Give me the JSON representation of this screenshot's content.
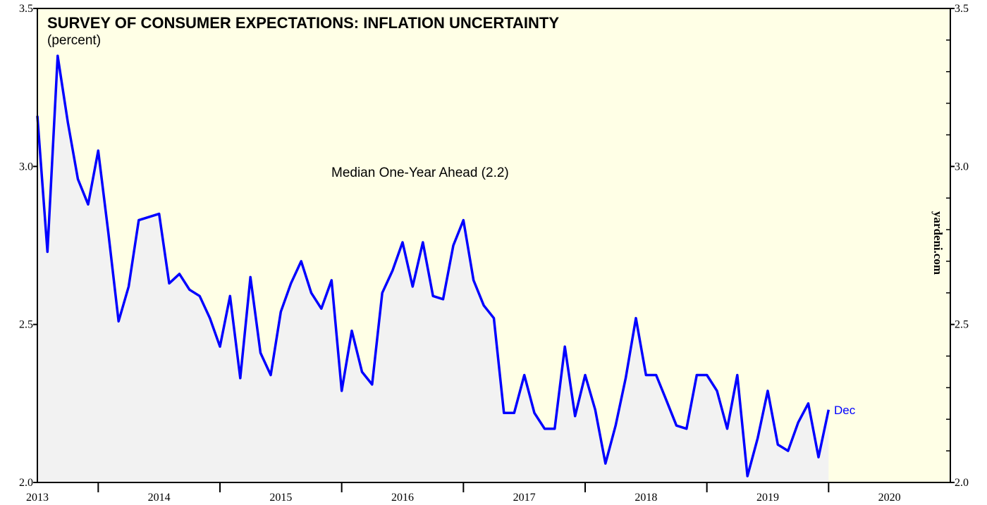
{
  "chart_data": {
    "type": "line",
    "title": "SURVEY OF CONSUMER EXPECTATIONS: INFLATION UNCERTAINTY",
    "subtitle": "(percent)",
    "annotations": [
      "Median One-Year Ahead (2.2)",
      "Dec",
      "yardeni.com"
    ],
    "x": [
      2013.5,
      2013.583,
      2013.667,
      2013.75,
      2013.833,
      2013.917,
      2014,
      2014.083,
      2014.167,
      2014.25,
      2014.333,
      2014.417,
      2014.5,
      2014.583,
      2014.667,
      2014.75,
      2014.833,
      2014.917,
      2015,
      2015.083,
      2015.167,
      2015.25,
      2015.333,
      2015.417,
      2015.5,
      2015.583,
      2015.667,
      2015.75,
      2015.833,
      2015.917,
      2016,
      2016.083,
      2016.167,
      2016.25,
      2016.333,
      2016.417,
      2016.5,
      2016.583,
      2016.667,
      2016.75,
      2016.833,
      2016.917,
      2017,
      2017.083,
      2017.167,
      2017.25,
      2017.333,
      2017.417,
      2017.5,
      2017.583,
      2017.667,
      2017.75,
      2017.833,
      2017.917,
      2018,
      2018.083,
      2018.167,
      2018.25,
      2018.333,
      2018.417,
      2018.5,
      2018.583,
      2018.667,
      2018.75,
      2018.833,
      2018.917,
      2019,
      2019.083,
      2019.167,
      2019.25,
      2019.333,
      2019.417,
      2019.5,
      2019.583,
      2019.667,
      2019.75,
      2019.833,
      2019.917,
      2020
    ],
    "series": [
      {
        "name": "Median One-Year Ahead",
        "color": "#0000ff",
        "area_color": "#f2f2f2",
        "values": [
          3.16,
          2.73,
          3.35,
          3.14,
          2.96,
          2.88,
          3.05,
          2.79,
          2.51,
          2.62,
          2.83,
          2.84,
          2.85,
          2.63,
          2.66,
          2.61,
          2.59,
          2.52,
          2.43,
          2.59,
          2.33,
          2.65,
          2.41,
          2.34,
          2.54,
          2.63,
          2.7,
          2.6,
          2.55,
          2.64,
          2.29,
          2.48,
          2.35,
          2.31,
          2.6,
          2.67,
          2.76,
          2.62,
          2.76,
          2.59,
          2.58,
          2.75,
          2.83,
          2.64,
          2.56,
          2.52,
          2.22,
          2.22,
          2.34,
          2.22,
          2.17,
          2.17,
          2.43,
          2.21,
          2.34,
          2.23,
          2.06,
          2.18,
          2.33,
          2.52,
          2.34,
          2.34,
          2.26,
          2.18,
          2.17,
          2.34,
          2.34,
          2.29,
          2.17,
          2.34,
          2.02,
          2.14,
          2.29,
          2.12,
          2.1,
          2.19,
          2.25,
          2.08,
          2.23
        ]
      }
    ],
    "xlim": [
      2013.5,
      2021
    ],
    "xticks": [
      {
        "value": 2013.5,
        "label": "2013"
      },
      {
        "value": 2014.5,
        "label": "2014"
      },
      {
        "value": 2015.5,
        "label": "2015"
      },
      {
        "value": 2016.5,
        "label": "2016"
      },
      {
        "value": 2017.5,
        "label": "2017"
      },
      {
        "value": 2018.5,
        "label": "2018"
      },
      {
        "value": 2019.5,
        "label": "2019"
      },
      {
        "value": 2020.5,
        "label": "2020"
      }
    ],
    "xminor_ticks": [
      2014,
      2015,
      2016,
      2017,
      2018,
      2019,
      2020
    ],
    "ylim": [
      2.0,
      3.5
    ],
    "yticks": [
      {
        "value": 2.0,
        "label": "2.0"
      },
      {
        "value": 2.5,
        "label": "2.5"
      },
      {
        "value": 3.0,
        "label": "3.0"
      },
      {
        "value": 3.5,
        "label": "3.5"
      }
    ],
    "yminor_ticks": [
      2.1,
      2.2,
      2.3,
      2.4,
      2.6,
      2.7,
      2.8,
      2.9,
      3.1,
      3.2,
      3.3,
      3.4
    ],
    "background": "#ffffe6"
  }
}
